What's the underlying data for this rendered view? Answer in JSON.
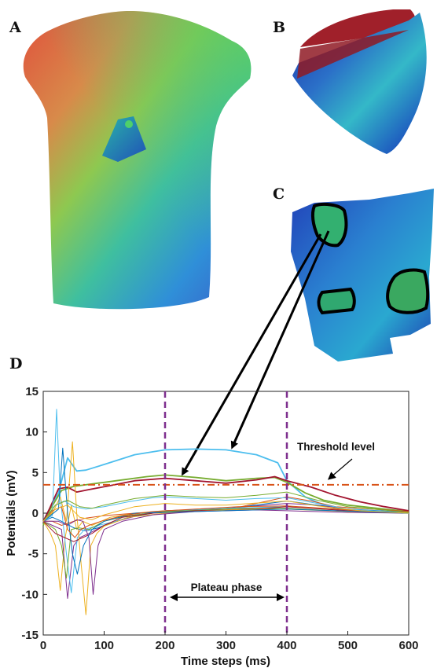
{
  "panels": {
    "a": "A",
    "b": "B",
    "c": "C",
    "d": "D"
  },
  "chart_data": {
    "type": "line",
    "xlabel": "Time steps (ms)",
    "ylabel": "Potentials (mV)",
    "xlim": [
      0,
      600
    ],
    "ylim": [
      -15,
      15
    ],
    "xticks": [
      0,
      100,
      200,
      300,
      400,
      500,
      600
    ],
    "yticks": [
      15,
      10,
      5,
      0,
      -5,
      -10,
      -15
    ],
    "threshold": {
      "value": 3.5,
      "label": "Threshold level",
      "color": "#d9541a"
    },
    "plateau": {
      "start": 200,
      "end": 400,
      "label": "Plateau phase",
      "color": "#7e2f8e"
    },
    "series": [
      {
        "color": "#4dbeee",
        "points": [
          [
            0,
            -1
          ],
          [
            10,
            0.5
          ],
          [
            25,
            2.5
          ],
          [
            40,
            6.8
          ],
          [
            55,
            5.2
          ],
          [
            70,
            5.3
          ],
          [
            100,
            6
          ],
          [
            150,
            7.2
          ],
          [
            200,
            7.8
          ],
          [
            250,
            7.9
          ],
          [
            300,
            7.8
          ],
          [
            350,
            7.2
          ],
          [
            385,
            6.2
          ],
          [
            400,
            4
          ],
          [
            430,
            2
          ],
          [
            460,
            1
          ],
          [
            500,
            0.4
          ],
          [
            560,
            0.1
          ],
          [
            600,
            0
          ]
        ]
      },
      {
        "color": "#77ac30",
        "points": [
          [
            0,
            -1.5
          ],
          [
            10,
            0.3
          ],
          [
            30,
            2.8
          ],
          [
            50,
            3.3
          ],
          [
            80,
            3.6
          ],
          [
            120,
            4
          ],
          [
            170,
            4.5
          ],
          [
            200,
            4.7
          ],
          [
            250,
            4.4
          ],
          [
            300,
            4
          ],
          [
            350,
            4.3
          ],
          [
            380,
            4.4
          ],
          [
            400,
            3.8
          ],
          [
            430,
            2.5
          ],
          [
            460,
            1.6
          ],
          [
            500,
            1
          ],
          [
            560,
            0.5
          ],
          [
            600,
            0.2
          ]
        ]
      },
      {
        "color": "#a2142f",
        "points": [
          [
            0,
            -1
          ],
          [
            10,
            0.5
          ],
          [
            25,
            3
          ],
          [
            40,
            3.2
          ],
          [
            55,
            2.6
          ],
          [
            75,
            2.9
          ],
          [
            110,
            3.4
          ],
          [
            150,
            4
          ],
          [
            200,
            4.3
          ],
          [
            250,
            4
          ],
          [
            300,
            3.7
          ],
          [
            350,
            4.1
          ],
          [
            380,
            4.5
          ],
          [
            400,
            4
          ],
          [
            440,
            3.2
          ],
          [
            480,
            2.2
          ],
          [
            520,
            1.4
          ],
          [
            560,
            0.8
          ],
          [
            600,
            0.3
          ]
        ]
      },
      {
        "color": "#edb120",
        "points": [
          [
            0,
            -1
          ],
          [
            12,
            -2.5
          ],
          [
            20,
            -4
          ],
          [
            28,
            -9.5
          ],
          [
            36,
            -3
          ],
          [
            46,
            1
          ],
          [
            55,
            -2
          ],
          [
            65,
            -1
          ],
          [
            80,
            -1.5
          ],
          [
            110,
            -0.5
          ],
          [
            150,
            0
          ],
          [
            200,
            0.3
          ],
          [
            300,
            0.5
          ],
          [
            400,
            0.8
          ],
          [
            500,
            0.4
          ],
          [
            600,
            0
          ]
        ]
      },
      {
        "color": "#7e2f8e",
        "points": [
          [
            0,
            -1
          ],
          [
            15,
            -1.5
          ],
          [
            30,
            -2
          ],
          [
            40,
            -10.5
          ],
          [
            50,
            -4
          ],
          [
            60,
            -3
          ],
          [
            75,
            -2.5
          ],
          [
            100,
            -1.5
          ],
          [
            130,
            -0.8
          ],
          [
            170,
            0
          ],
          [
            200,
            0.3
          ],
          [
            300,
            0.6
          ],
          [
            400,
            1.2
          ],
          [
            450,
            1
          ],
          [
            500,
            0.5
          ],
          [
            600,
            0
          ]
        ]
      },
      {
        "color": "#0072bd",
        "points": [
          [
            0,
            -1
          ],
          [
            15,
            -0.5
          ],
          [
            30,
            -1
          ],
          [
            50,
            -1.8
          ],
          [
            70,
            -2.2
          ],
          [
            90,
            -1.8
          ],
          [
            110,
            -1.2
          ],
          [
            140,
            -0.5
          ],
          [
            180,
            0
          ],
          [
            200,
            0.3
          ],
          [
            300,
            0.5
          ],
          [
            400,
            1.5
          ],
          [
            430,
            1.2
          ],
          [
            480,
            0.6
          ],
          [
            600,
            0.1
          ]
        ]
      },
      {
        "color": "#d95319",
        "points": [
          [
            0,
            -1
          ],
          [
            15,
            -1
          ],
          [
            30,
            -1.5
          ],
          [
            50,
            -1
          ],
          [
            70,
            -0.6
          ],
          [
            100,
            -0.3
          ],
          [
            150,
            0
          ],
          [
            200,
            0.2
          ],
          [
            300,
            0.4
          ],
          [
            400,
            2
          ],
          [
            440,
            1.5
          ],
          [
            480,
            0.8
          ],
          [
            600,
            0.2
          ]
        ]
      },
      {
        "color": "#4dbeee",
        "points": [
          [
            0,
            -1
          ],
          [
            15,
            -0.3
          ],
          [
            22,
            12.8
          ],
          [
            28,
            2
          ],
          [
            38,
            -5
          ],
          [
            46,
            -9.8
          ],
          [
            56,
            -3
          ],
          [
            68,
            -2
          ],
          [
            90,
            -1.5
          ],
          [
            120,
            -1
          ],
          [
            160,
            0
          ],
          [
            200,
            0.2
          ],
          [
            300,
            0.6
          ],
          [
            400,
            0.8
          ],
          [
            500,
            0.3
          ],
          [
            600,
            0
          ]
        ]
      },
      {
        "color": "#77ac30",
        "points": [
          [
            0,
            -1
          ],
          [
            20,
            -2
          ],
          [
            30,
            -4
          ],
          [
            38,
            -8
          ],
          [
            46,
            -2
          ],
          [
            58,
            -1.8
          ],
          [
            75,
            -2
          ],
          [
            100,
            -1
          ],
          [
            140,
            -0.3
          ],
          [
            200,
            0.2
          ],
          [
            300,
            0.5
          ],
          [
            400,
            0.6
          ],
          [
            500,
            0.2
          ],
          [
            600,
            0
          ]
        ]
      },
      {
        "color": "#a2142f",
        "points": [
          [
            0,
            -1
          ],
          [
            20,
            -2.5
          ],
          [
            35,
            -3
          ],
          [
            50,
            -3.5
          ],
          [
            65,
            -3
          ],
          [
            80,
            -2.5
          ],
          [
            100,
            -1.5
          ],
          [
            130,
            -0.5
          ],
          [
            180,
            0
          ],
          [
            250,
            0.3
          ],
          [
            350,
            0.5
          ],
          [
            400,
            0.8
          ],
          [
            500,
            0.3
          ],
          [
            600,
            0
          ]
        ]
      },
      {
        "color": "#edb120",
        "points": [
          [
            0,
            -1
          ],
          [
            15,
            0
          ],
          [
            28,
            2
          ],
          [
            38,
            -1
          ],
          [
            48,
            8.8
          ],
          [
            55,
            0
          ],
          [
            62,
            -6
          ],
          [
            70,
            -12.5
          ],
          [
            78,
            -4
          ],
          [
            88,
            -2.5
          ],
          [
            100,
            -1.6
          ],
          [
            140,
            -0.5
          ],
          [
            200,
            0
          ],
          [
            300,
            0.4
          ],
          [
            400,
            0.5
          ],
          [
            500,
            0.2
          ],
          [
            600,
            0
          ]
        ]
      },
      {
        "color": "#7e2f8e",
        "points": [
          [
            0,
            -1
          ],
          [
            25,
            -1
          ],
          [
            40,
            -1.5
          ],
          [
            55,
            -0.8
          ],
          [
            65,
            -1
          ],
          [
            75,
            -3
          ],
          [
            82,
            -10
          ],
          [
            90,
            -4
          ],
          [
            100,
            -2
          ],
          [
            130,
            -1
          ],
          [
            180,
            -0.2
          ],
          [
            250,
            0.2
          ],
          [
            350,
            0.4
          ],
          [
            400,
            0.3
          ],
          [
            500,
            0.1
          ],
          [
            600,
            0
          ]
        ]
      },
      {
        "color": "#0072bd",
        "points": [
          [
            0,
            -1
          ],
          [
            25,
            0.5
          ],
          [
            32,
            8
          ],
          [
            40,
            0
          ],
          [
            48,
            -5
          ],
          [
            56,
            -7.5
          ],
          [
            66,
            -4
          ],
          [
            80,
            -2
          ],
          [
            100,
            -1
          ],
          [
            150,
            0
          ],
          [
            200,
            0.1
          ],
          [
            300,
            0.3
          ],
          [
            400,
            0.5
          ],
          [
            600,
            0
          ]
        ]
      },
      {
        "color": "#d95319",
        "points": [
          [
            0,
            -1
          ],
          [
            15,
            0.3
          ],
          [
            30,
            0.8
          ],
          [
            40,
            -2
          ],
          [
            52,
            -3
          ],
          [
            62,
            -2
          ],
          [
            75,
            -1.5
          ],
          [
            95,
            -1
          ],
          [
            130,
            -0.3
          ],
          [
            180,
            0.2
          ],
          [
            250,
            0.5
          ],
          [
            320,
            0.8
          ],
          [
            400,
            0.9
          ],
          [
            480,
            0.5
          ],
          [
            600,
            0
          ]
        ]
      },
      {
        "color": "#4dbeee",
        "points": [
          [
            0,
            -1
          ],
          [
            20,
            1
          ],
          [
            35,
            1.5
          ],
          [
            50,
            0.8
          ],
          [
            70,
            0.5
          ],
          [
            100,
            0.8
          ],
          [
            140,
            1.4
          ],
          [
            180,
            1.9
          ],
          [
            200,
            2
          ],
          [
            250,
            1.8
          ],
          [
            300,
            1.6
          ],
          [
            350,
            1.8
          ],
          [
            400,
            1.9
          ],
          [
            450,
            1.2
          ],
          [
            500,
            0.5
          ],
          [
            600,
            0
          ]
        ]
      },
      {
        "color": "#77ac30",
        "points": [
          [
            0,
            -1
          ],
          [
            20,
            1
          ],
          [
            40,
            1.6
          ],
          [
            60,
            0.8
          ],
          [
            80,
            0.6
          ],
          [
            100,
            1
          ],
          [
            150,
            1.8
          ],
          [
            200,
            2.2
          ],
          [
            250,
            2
          ],
          [
            300,
            1.9
          ],
          [
            350,
            2.2
          ],
          [
            400,
            2.6
          ],
          [
            450,
            1.6
          ],
          [
            500,
            0.8
          ],
          [
            600,
            0.1
          ]
        ]
      },
      {
        "color": "#edb120",
        "points": [
          [
            0,
            -1
          ],
          [
            20,
            0.5
          ],
          [
            40,
            1
          ],
          [
            60,
            -0.5
          ],
          [
            80,
            -0.8
          ],
          [
            100,
            -0.2
          ],
          [
            150,
            0.8
          ],
          [
            200,
            1.2
          ],
          [
            250,
            1
          ],
          [
            300,
            1
          ],
          [
            400,
            1.5
          ],
          [
            450,
            0.9
          ],
          [
            520,
            0.3
          ],
          [
            600,
            0
          ]
        ]
      }
    ]
  }
}
